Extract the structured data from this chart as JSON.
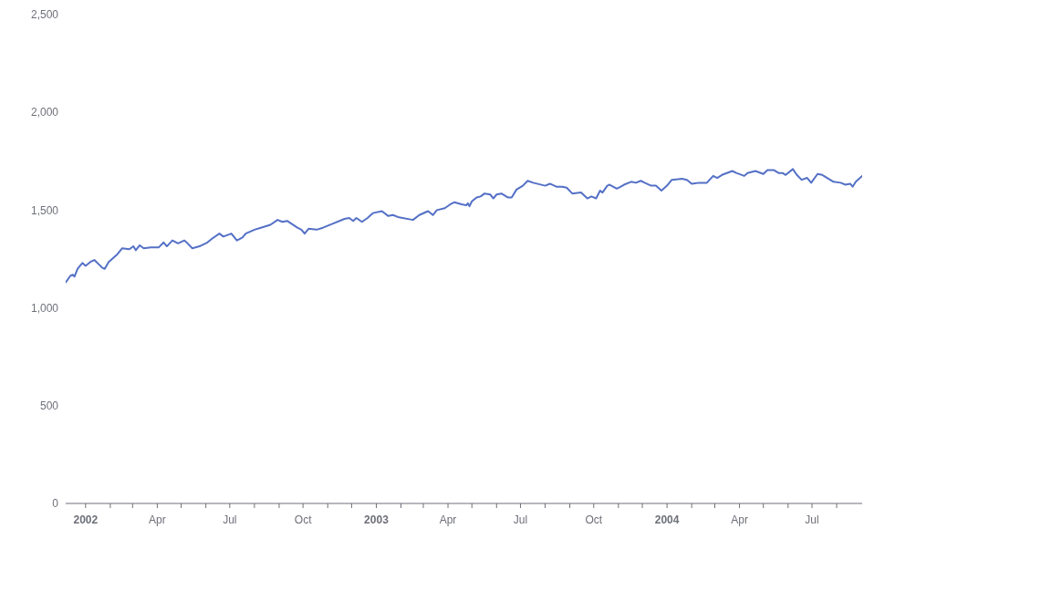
{
  "chart_data": {
    "type": "line",
    "x": [
      "2001-12-07",
      "2001-12-13",
      "2001-12-16",
      "2001-12-18",
      "2001-12-22",
      "2001-12-28",
      "2002-01-01",
      "2002-01-07",
      "2002-01-12",
      "2002-01-22",
      "2002-01-25",
      "2002-01-30",
      "2002-02-10",
      "2002-02-16",
      "2002-02-25",
      "2002-03-02",
      "2002-03-05",
      "2002-03-10",
      "2002-03-15",
      "2002-03-24",
      "2002-04-03",
      "2002-04-09",
      "2002-04-13",
      "2002-04-20",
      "2002-04-27",
      "2002-05-05",
      "2002-05-09",
      "2002-05-15",
      "2002-05-24",
      "2002-06-03",
      "2002-06-09",
      "2002-06-18",
      "2002-06-23",
      "2002-07-03",
      "2002-07-10",
      "2002-07-17",
      "2002-07-21",
      "2002-08-01",
      "2002-08-09",
      "2002-08-21",
      "2002-08-30",
      "2002-09-05",
      "2002-09-11",
      "2002-09-24",
      "2002-09-29",
      "2002-10-03",
      "2002-10-08",
      "2002-10-18",
      "2002-10-26",
      "2002-11-07",
      "2002-11-22",
      "2002-11-28",
      "2002-12-03",
      "2002-12-07",
      "2002-12-14",
      "2002-12-21",
      "2002-12-28",
      "2003-01-08",
      "2003-01-16",
      "2003-01-22",
      "2003-01-28",
      "2003-02-16",
      "2003-02-24",
      "2003-03-07",
      "2003-03-13",
      "2003-03-18",
      "2003-03-28",
      "2003-04-04",
      "2003-04-09",
      "2003-04-18",
      "2003-04-24",
      "2003-04-26",
      "2003-04-28",
      "2003-05-01",
      "2003-05-07",
      "2003-05-12",
      "2003-05-17",
      "2003-05-24",
      "2003-05-28",
      "2003-06-01",
      "2003-06-07",
      "2003-06-15",
      "2003-06-20",
      "2003-06-26",
      "2003-07-04",
      "2003-07-10",
      "2003-07-17",
      "2003-08-01",
      "2003-08-07",
      "2003-08-15",
      "2003-08-22",
      "2003-08-28",
      "2003-09-04",
      "2003-09-15",
      "2003-09-23",
      "2003-09-28",
      "2003-10-04",
      "2003-10-09",
      "2003-10-12",
      "2003-10-18",
      "2003-10-21",
      "2003-10-30",
      "2003-11-04",
      "2003-11-08",
      "2003-11-17",
      "2003-11-23",
      "2003-11-29",
      "2003-12-04",
      "2003-12-12",
      "2003-12-18",
      "2003-12-25",
      "2004-01-01",
      "2004-01-07",
      "2004-01-20",
      "2004-01-26",
      "2004-02-01",
      "2004-02-10",
      "2004-02-20",
      "2004-02-28",
      "2004-03-04",
      "2004-03-10",
      "2004-03-23",
      "2004-03-28",
      "2004-04-07",
      "2004-04-11",
      "2004-04-21",
      "2004-05-01",
      "2004-05-06",
      "2004-05-14",
      "2004-05-20",
      "2004-05-25",
      "2004-05-29",
      "2004-06-07",
      "2004-06-12",
      "2004-06-18",
      "2004-06-25",
      "2004-06-30",
      "2004-07-08",
      "2004-07-14",
      "2004-07-28",
      "2004-08-06",
      "2004-08-12",
      "2004-08-18",
      "2004-08-21",
      "2004-08-25",
      "2004-09-02"
    ],
    "series": [
      {
        "color": "#5470c6",
        "values": [
          1130,
          1165,
          1170,
          1160,
          1200,
          1230,
          1215,
          1235,
          1245,
          1205,
          1200,
          1235,
          1275,
          1305,
          1300,
          1315,
          1295,
          1320,
          1305,
          1310,
          1310,
          1335,
          1315,
          1345,
          1330,
          1345,
          1330,
          1305,
          1315,
          1335,
          1355,
          1380,
          1365,
          1380,
          1345,
          1360,
          1380,
          1400,
          1410,
          1425,
          1450,
          1440,
          1445,
          1410,
          1400,
          1380,
          1405,
          1400,
          1410,
          1430,
          1455,
          1460,
          1445,
          1460,
          1440,
          1460,
          1485,
          1495,
          1470,
          1475,
          1465,
          1450,
          1475,
          1495,
          1475,
          1500,
          1510,
          1530,
          1540,
          1530,
          1525,
          1535,
          1520,
          1545,
          1565,
          1570,
          1585,
          1580,
          1560,
          1580,
          1585,
          1565,
          1565,
          1605,
          1625,
          1650,
          1640,
          1625,
          1635,
          1620,
          1620,
          1615,
          1585,
          1590,
          1560,
          1570,
          1560,
          1600,
          1590,
          1625,
          1630,
          1610,
          1620,
          1630,
          1645,
          1640,
          1650,
          1640,
          1625,
          1625,
          1600,
          1625,
          1655,
          1660,
          1655,
          1635,
          1640,
          1640,
          1675,
          1665,
          1680,
          1700,
          1690,
          1675,
          1690,
          1700,
          1685,
          1705,
          1705,
          1690,
          1690,
          1680,
          1710,
          1680,
          1655,
          1665,
          1640,
          1685,
          1680,
          1645,
          1640,
          1630,
          1635,
          1620,
          1645,
          1675
        ]
      }
    ],
    "xlim": [
      "2001-12-07",
      "2004-09-02"
    ],
    "xticks": [
      {
        "value": "2002-01-01",
        "label": "2002"
      },
      {
        "value": "2002-02-01",
        "label": null
      },
      {
        "value": "2002-03-01",
        "label": null
      },
      {
        "value": "2002-04-01",
        "label": "Apr"
      },
      {
        "value": "2002-05-01",
        "label": null
      },
      {
        "value": "2002-06-01",
        "label": null
      },
      {
        "value": "2002-07-01",
        "label": "Jul"
      },
      {
        "value": "2002-08-01",
        "label": null
      },
      {
        "value": "2002-09-01",
        "label": null
      },
      {
        "value": "2002-10-01",
        "label": "Oct"
      },
      {
        "value": "2002-11-01",
        "label": null
      },
      {
        "value": "2002-12-01",
        "label": null
      },
      {
        "value": "2003-01-01",
        "label": "2003"
      },
      {
        "value": "2003-02-01",
        "label": null
      },
      {
        "value": "2003-03-01",
        "label": null
      },
      {
        "value": "2003-04-01",
        "label": "Apr"
      },
      {
        "value": "2003-05-01",
        "label": null
      },
      {
        "value": "2003-06-01",
        "label": null
      },
      {
        "value": "2003-07-01",
        "label": "Jul"
      },
      {
        "value": "2003-08-01",
        "label": null
      },
      {
        "value": "2003-09-01",
        "label": null
      },
      {
        "value": "2003-10-01",
        "label": "Oct"
      },
      {
        "value": "2003-11-01",
        "label": null
      },
      {
        "value": "2003-12-01",
        "label": null
      },
      {
        "value": "2004-01-01",
        "label": "2004"
      },
      {
        "value": "2004-02-01",
        "label": null
      },
      {
        "value": "2004-03-01",
        "label": null
      },
      {
        "value": "2004-04-01",
        "label": "Apr"
      },
      {
        "value": "2004-05-01",
        "label": null
      },
      {
        "value": "2004-06-01",
        "label": null
      },
      {
        "value": "2004-07-01",
        "label": "Jul"
      },
      {
        "value": "2004-08-01",
        "label": null
      }
    ],
    "ylim": [
      0,
      2500
    ],
    "yticks": [
      0,
      500,
      {
        "value": 1000,
        "label": "1,000"
      },
      {
        "value": 1500,
        "label": "1,500"
      },
      {
        "value": 2000,
        "label": "2,000"
      },
      {
        "value": 2500,
        "label": "2,500"
      }
    ]
  }
}
